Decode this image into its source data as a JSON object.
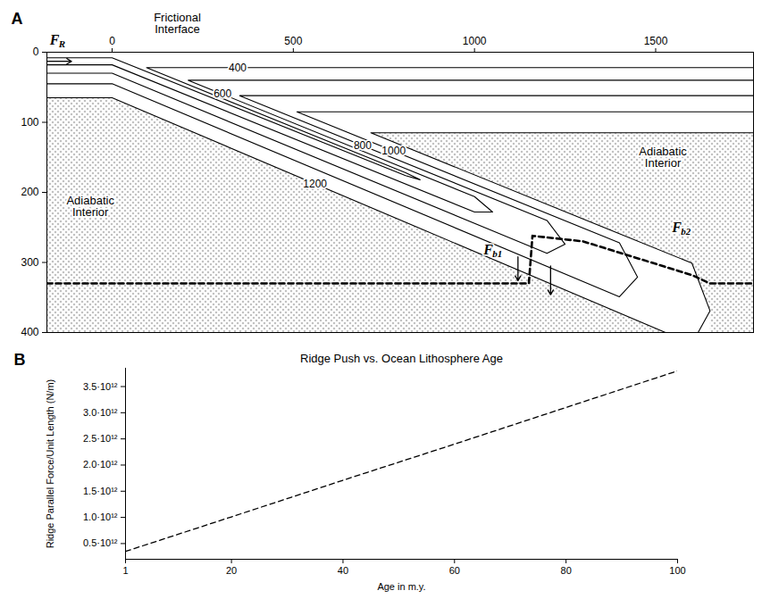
{
  "chart_data": [
    {
      "panel": "A",
      "type": "contour",
      "xlim": [
        -180,
        1770
      ],
      "xticks": [
        0,
        500,
        1000,
        1500
      ],
      "ylim": [
        0,
        400
      ],
      "yticks": [
        0,
        100,
        200,
        300,
        400
      ],
      "isotherms": [
        {
          "level": 400,
          "x": [
            -180,
            0,
            810,
            850,
            810,
            95,
            1770
          ],
          "y": [
            8,
            8,
            176,
            182,
            172,
            22,
            22
          ]
        },
        {
          "level": 600,
          "x": [
            -180,
            0,
            1000,
            1050,
            1000,
            210,
            1770
          ],
          "y": [
            18,
            18,
            228,
            228,
            206,
            40,
            40
          ]
        },
        {
          "level": 800,
          "x": [
            -180,
            0,
            1200,
            1250,
            1200,
            352,
            1770
          ],
          "y": [
            30,
            30,
            287,
            274,
            240,
            62,
            62
          ]
        },
        {
          "level": 1000,
          "x": [
            -180,
            0,
            1400,
            1450,
            1400,
            510,
            1770
          ],
          "y": [
            45,
            45,
            349,
            321,
            272,
            85,
            85
          ]
        },
        {
          "level": 1200,
          "x": [
            -180,
            0,
            1600,
            1650,
            1600,
            714,
            1770
          ],
          "y": [
            65,
            65,
            416,
            369,
            301,
            115,
            115
          ]
        }
      ],
      "phase_boundary": {
        "x": [
          -180,
          1150,
          1160,
          1300,
          1600,
          1650,
          1770
        ],
        "y": [
          330,
          330,
          262,
          270,
          318,
          330,
          330
        ],
        "line_style": "dashed",
        "color": "#000000"
      },
      "annotations": {
        "interface": "Frictional Interface",
        "interior": [
          "Adiabatic Interior",
          "Adiabatic Interior"
        ]
      },
      "forces": [
        {
          "label": "F",
          "subscript": "R"
        },
        {
          "label": "F",
          "subscript": "b1"
        },
        {
          "label": "F",
          "subscript": "b2"
        }
      ]
    },
    {
      "panel": "B",
      "type": "line",
      "title": "Ridge Push vs. Ocean Lithosphere Age",
      "x_label": "Age in m.y.",
      "y_label": "Ridge Parallel Force/Unit Length (N/m)",
      "x": [
        1,
        20,
        40,
        60,
        80,
        100
      ],
      "series": [
        {
          "values": [
            350000000000.0,
            1010000000000.0,
            1710000000000.0,
            2400000000000.0,
            3100000000000.0,
            3800000000000.0
          ],
          "color": "#000000",
          "line_style": "dashed"
        }
      ],
      "xlim": [
        1,
        100
      ],
      "xticks": [
        1,
        20,
        40,
        60,
        80,
        100
      ],
      "ylim": [
        200000000000.0,
        3850000000000.0
      ],
      "yticks": [
        {
          "value": 500000000000.0,
          "label": "0.5·10¹²"
        },
        {
          "value": 1000000000000.0,
          "label": "1.0·10¹²"
        },
        {
          "value": 1500000000000.0,
          "label": "1.5·10¹²"
        },
        {
          "value": 2000000000000.0,
          "label": "2.0·10¹²"
        },
        {
          "value": 2500000000000.0,
          "label": "2.5·10¹²"
        },
        {
          "value": 3000000000000.0,
          "label": "3.0·10¹²"
        },
        {
          "value": 3500000000000.0,
          "label": "3.5·10¹²"
        }
      ]
    }
  ]
}
